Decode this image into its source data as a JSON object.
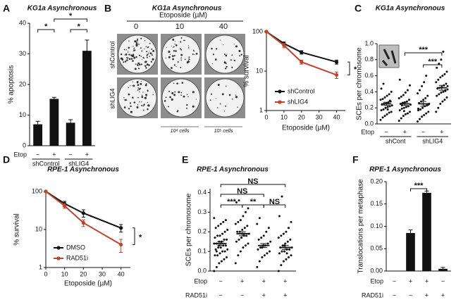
{
  "chart_data": [
    {
      "panel": "A",
      "type": "bar",
      "title": "KG1a Asynchronous",
      "ylabel": "% apoptosis",
      "ylim": [
        0,
        40
      ],
      "yticks": [
        0,
        10,
        20,
        30,
        40
      ],
      "color": "#111111",
      "values": [
        7,
        15.3,
        7.5,
        31
      ],
      "errors": [
        1,
        0.5,
        1,
        3.5
      ],
      "rows": [
        {
          "label": "Etop",
          "signs": [
            "−",
            "+",
            "−",
            "+"
          ]
        }
      ],
      "groups": [
        "shControl",
        "shLIG4"
      ],
      "annotations": [
        "*",
        "*",
        "*"
      ]
    },
    {
      "panel": "B",
      "type": "line",
      "title": "KG1a Asynchronous",
      "plate_header": "Etoposide (µM)",
      "plate_columns": [
        "0",
        "10",
        "40"
      ],
      "plate_rows": [
        "shControl",
        "shLIG4"
      ],
      "plate_notes": [
        "10⁴ cells",
        "10⁵ cells"
      ],
      "x": [
        0,
        10,
        20,
        40
      ],
      "xlim": [
        0,
        45
      ],
      "xticks": [
        0,
        10,
        20,
        30,
        40
      ],
      "ylog": true,
      "ylim": [
        1,
        100
      ],
      "yticks": [
        1,
        10,
        100
      ],
      "xlabel": "Etoposide (µM)",
      "ylabel": "% survival",
      "legend": "lower-left",
      "series": [
        {
          "name": "shControl",
          "color": "#111111",
          "values": [
            100,
            50,
            30,
            17
          ],
          "errors": [
            0,
            5,
            3,
            2
          ]
        },
        {
          "name": "shLIG4",
          "color": "#c0432a",
          "values": [
            100,
            45,
            17,
            8
          ],
          "errors": [
            0,
            6,
            2,
            1.5
          ]
        }
      ],
      "annotations": [
        "*"
      ]
    },
    {
      "panel": "C",
      "type": "strip",
      "title": "KG1a Asynchronous",
      "ylabel": "SCEs per chromosome",
      "ylim": [
        0,
        1
      ],
      "yticks": [
        {
          "value": 0,
          "label": "0.0"
        },
        0.2,
        0.4,
        0.6,
        0.8,
        {
          "value": 1,
          "label": "1.0"
        }
      ],
      "color": "#111111",
      "series": [
        {
          "values": [
            0.05,
            0.08,
            0.1,
            0.12,
            0.14,
            0.15,
            0.17,
            0.18,
            0.2,
            0.21,
            0.22,
            0.23,
            0.24,
            0.25,
            0.26,
            0.27,
            0.28,
            0.3,
            0.31,
            0.33,
            0.35,
            0.37,
            0.4,
            0.44,
            0.5,
            0.2,
            0.18,
            0.29
          ],
          "mean": 0.25,
          "error": 0.02
        },
        {
          "values": [
            0.04,
            0.07,
            0.1,
            0.12,
            0.13,
            0.15,
            0.17,
            0.19,
            0.2,
            0.21,
            0.22,
            0.24,
            0.25,
            0.26,
            0.27,
            0.28,
            0.3,
            0.32,
            0.34,
            0.36,
            0.39,
            0.42,
            0.48,
            0.55,
            0.23,
            0.16
          ],
          "mean": 0.25,
          "error": 0.02
        },
        {
          "values": [
            0.03,
            0.06,
            0.09,
            0.11,
            0.13,
            0.15,
            0.17,
            0.18,
            0.2,
            0.22,
            0.23,
            0.25,
            0.26,
            0.28,
            0.3,
            0.32,
            0.35,
            0.38,
            0.42,
            0.47,
            0.52,
            0.6,
            0.24,
            0.19
          ],
          "mean": 0.25,
          "error": 0.03
        },
        {
          "values": [
            0.15,
            0.2,
            0.25,
            0.28,
            0.3,
            0.33,
            0.35,
            0.37,
            0.39,
            0.4,
            0.42,
            0.43,
            0.44,
            0.45,
            0.46,
            0.48,
            0.5,
            0.52,
            0.55,
            0.58,
            0.6,
            0.62,
            0.65,
            0.7,
            0.75,
            0.8,
            0.9,
            0.41,
            0.47
          ],
          "mean": 0.45,
          "error": 0.03
        }
      ],
      "rows": [
        {
          "label": "Etop",
          "signs": [
            "−",
            "+",
            "−",
            "+"
          ]
        }
      ],
      "groups": [
        "shCont",
        "shLIG4"
      ],
      "annotations": [
        "***",
        "***"
      ]
    },
    {
      "panel": "D",
      "type": "line",
      "title": "RPE-1 Asynchronous",
      "x": [
        0,
        10,
        20,
        40
      ],
      "xlim": [
        0,
        45
      ],
      "xticks": [
        0,
        10,
        20,
        30,
        40
      ],
      "ylog": true,
      "ylim": [
        1,
        100
      ],
      "yticks": [
        1,
        10,
        100
      ],
      "xlabel": "Etoposide (µM)",
      "ylabel": "% survival",
      "legend": "lower-left",
      "series": [
        {
          "name": "DMSO",
          "color": "#111111",
          "values": [
            100,
            48,
            27,
            11
          ],
          "errors": [
            0,
            7,
            6,
            2.5
          ]
        },
        {
          "name": "RAD51i",
          "color": "#c0432a",
          "values": [
            100,
            42,
            15,
            4
          ],
          "errors": [
            0,
            6,
            3,
            1.5
          ]
        }
      ],
      "annotations": [
        "*"
      ]
    },
    {
      "panel": "E",
      "type": "strip",
      "title": "RPE-1 Asynchronous",
      "ylabel": "SCEs per chromosome",
      "ylim": [
        0,
        0.42
      ],
      "yticks": [
        {
          "value": 0,
          "label": "0.0"
        },
        0.1,
        0.2,
        0.3,
        0.4
      ],
      "color": "#111111",
      "series": [
        {
          "values": [
            0.0,
            0.02,
            0.04,
            0.05,
            0.06,
            0.07,
            0.08,
            0.08,
            0.09,
            0.1,
            0.1,
            0.11,
            0.11,
            0.12,
            0.12,
            0.13,
            0.13,
            0.14,
            0.14,
            0.15,
            0.15,
            0.16,
            0.16,
            0.17,
            0.18,
            0.18,
            0.19,
            0.2,
            0.21,
            0.22,
            0.23,
            0.24,
            0.25,
            0.26,
            0.27,
            0.1,
            0.13,
            0.15
          ],
          "mean": 0.14,
          "error": 0.01
        },
        {
          "values": [
            0.04,
            0.08,
            0.1,
            0.12,
            0.13,
            0.14,
            0.15,
            0.16,
            0.17,
            0.18,
            0.18,
            0.19,
            0.2,
            0.2,
            0.21,
            0.22,
            0.23,
            0.24,
            0.25,
            0.26,
            0.28,
            0.3,
            0.32,
            0.35,
            0.36,
            0.17,
            0.19
          ],
          "mean": 0.19,
          "error": 0.01
        },
        {
          "values": [
            0.02,
            0.05,
            0.07,
            0.08,
            0.09,
            0.1,
            0.11,
            0.12,
            0.13,
            0.13,
            0.14,
            0.15,
            0.16,
            0.17,
            0.18,
            0.2,
            0.22,
            0.24,
            0.27,
            0.12
          ],
          "mean": 0.13,
          "error": 0.01
        },
        {
          "values": [
            0.0,
            0.03,
            0.05,
            0.06,
            0.07,
            0.08,
            0.09,
            0.1,
            0.1,
            0.11,
            0.11,
            0.12,
            0.12,
            0.13,
            0.14,
            0.15,
            0.16,
            0.17,
            0.18,
            0.19,
            0.2,
            0.22,
            0.25,
            0.28,
            0.38,
            0.13,
            0.09
          ],
          "mean": 0.12,
          "error": 0.01
        }
      ],
      "rows": [
        {
          "label": "Etop",
          "signs": [
            "−",
            "+",
            "+",
            "+"
          ]
        },
        {
          "label": "RAD51i",
          "signs": [
            "−",
            "−",
            "+",
            "+"
          ]
        }
      ],
      "annotations": [
        "NS",
        "NS",
        "***",
        "**",
        "NS"
      ]
    },
    {
      "panel": "F",
      "type": "bar",
      "title": "RPE-1 Asynchronous",
      "ylabel": "Translocations per metaphase",
      "ylim": [
        0,
        0.2
      ],
      "yticks": [
        {
          "value": 0,
          "label": "0.00"
        },
        {
          "value": 0.05,
          "label": "0.05"
        },
        {
          "value": 0.1,
          "label": "0.10"
        },
        {
          "value": 0.15,
          "label": "0.15"
        },
        {
          "value": 0.2,
          "label": "0.20"
        }
      ],
      "color": "#111111",
      "values": [
        0,
        0.085,
        0.175,
        0.005
      ],
      "errors": [
        0,
        0.007,
        0.004,
        0.003
      ],
      "rows": [
        {
          "label": "Etop",
          "signs": [
            "−",
            "+",
            "+",
            "−"
          ]
        },
        {
          "label": "RAD51i",
          "signs": [
            "−",
            "−",
            "+",
            "+"
          ]
        }
      ],
      "annotations": [
        "***"
      ]
    }
  ]
}
